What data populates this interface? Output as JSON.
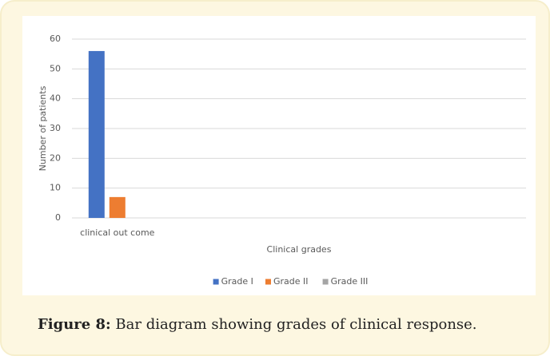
{
  "chart_data": {
    "type": "bar",
    "y_label": "Number of patients",
    "x_label": "Clinical grades",
    "categories": [
      "clinical out come",
      null,
      null,
      null,
      null
    ],
    "series": [
      {
        "name": "Grade I",
        "color": "#4472c4",
        "values": [
          56,
          null,
          null,
          null,
          null
        ]
      },
      {
        "name": "Grade II",
        "color": "#ed7d31",
        "values": [
          7,
          null,
          null,
          null,
          null
        ]
      },
      {
        "name": "Grade III",
        "color": "#a5a5a5",
        "values": [
          0,
          null,
          null,
          null,
          null
        ]
      }
    ],
    "ylim": [
      0,
      60
    ],
    "yticks": [
      0,
      10,
      20,
      30,
      40,
      50,
      60
    ],
    "grid": true,
    "legend": "bottom"
  },
  "caption": {
    "label": "Figure 8:",
    "text": "Bar diagram showing grades of clinical response."
  }
}
